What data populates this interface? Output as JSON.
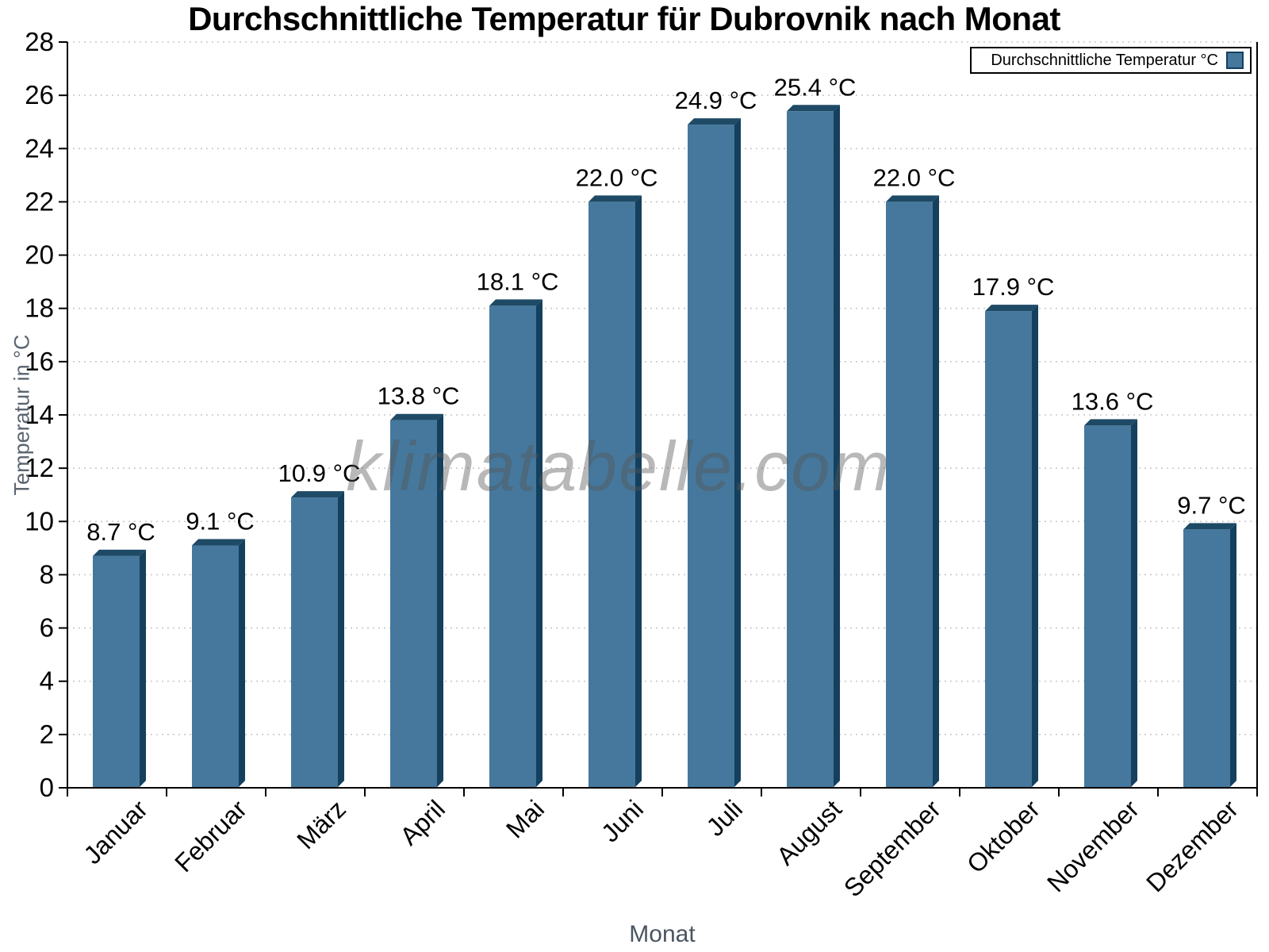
{
  "title": "Durchschnittliche Temperatur für Dubrovnik nach Monat",
  "legend": {
    "label": "Durchschnittliche Temperatur °C"
  },
  "watermark": "klimatabelle.com",
  "chart_data": {
    "type": "bar",
    "title": "Durchschnittliche Temperatur für Dubrovnik nach Monat",
    "categories": [
      "Januar",
      "Februar",
      "März",
      "April",
      "Mai",
      "Juni",
      "Juli",
      "August",
      "September",
      "Oktober",
      "November",
      "Dezember"
    ],
    "series": [
      {
        "name": "Durchschnittliche Temperatur °C",
        "values": [
          8.7,
          9.1,
          10.9,
          13.8,
          18.1,
          22.0,
          24.9,
          25.4,
          22.0,
          17.9,
          13.6,
          9.7
        ]
      }
    ],
    "data_labels": [
      "8.7 °C",
      "9.1 °C",
      "10.9 °C",
      "13.8 °C",
      "18.1 °C",
      "22.0 °C",
      "24.9 °C",
      "25.4 °C",
      "22.0 °C",
      "17.9 °C",
      "13.6 °C",
      "9.7 °C"
    ],
    "xlabel": "Monat",
    "ylabel": "Temperatur in °C",
    "ylim": [
      0,
      28
    ],
    "ytick_step": 2,
    "yticks": [
      0,
      2,
      4,
      6,
      8,
      10,
      12,
      14,
      16,
      18,
      20,
      22,
      24,
      26,
      28
    ],
    "grid": "horizontal-dotted",
    "legend_position": "top-right",
    "bar_style": "3d-oblique",
    "colors": {
      "bar_face": "#45789C",
      "bar_side": "#14405E",
      "bar_top": "#1E4A66",
      "grid": "#C9C9C9",
      "axis": "#000000",
      "tick_label": "#000000",
      "data_label": "#000000",
      "axis_title": "#5A6570",
      "watermark_gray": "#B4B4B4"
    }
  }
}
